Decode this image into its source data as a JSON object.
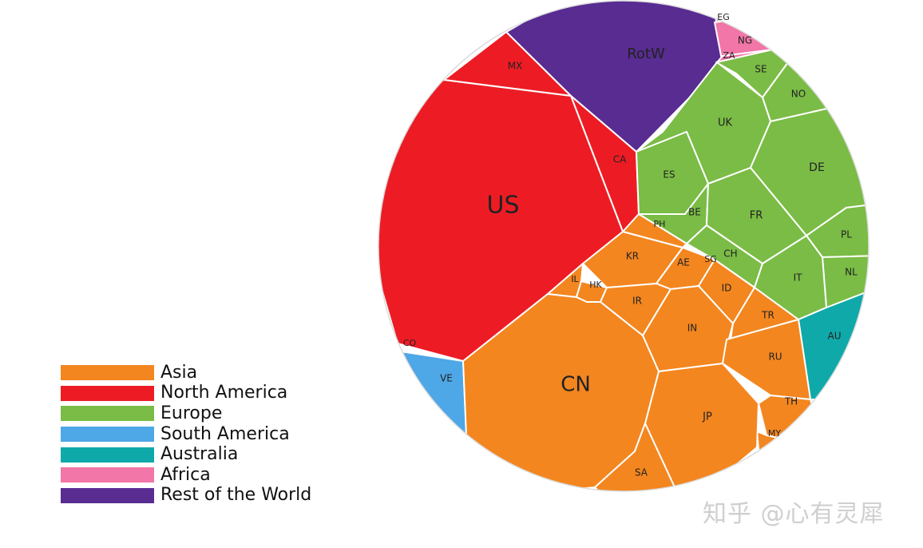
{
  "chart_data": {
    "type": "voronoi-treemap",
    "title": "",
    "groups": [
      {
        "name": "Asia",
        "color": "#f3861f",
        "countries": [
          "CN",
          "JP",
          "IN",
          "KR",
          "RU",
          "ID",
          "IR",
          "TR",
          "AE",
          "SA",
          "TH",
          "HK",
          "IL",
          "SG",
          "PH",
          "MY"
        ]
      },
      {
        "name": "North America",
        "color": "#ed1c24",
        "countries": [
          "US",
          "CA",
          "MX"
        ]
      },
      {
        "name": "Europe",
        "color": "#7abc45",
        "countries": [
          "DE",
          "UK",
          "FR",
          "IT",
          "ES",
          "NL",
          "CH",
          "PL",
          "SE",
          "BE",
          "NO"
        ]
      },
      {
        "name": "South America",
        "color": "#4ea7e6",
        "countries": [
          "VE",
          "CO"
        ]
      },
      {
        "name": "Australia",
        "color": "#0fa9a9",
        "countries": [
          "AU"
        ]
      },
      {
        "name": "Africa",
        "color": "#f276a8",
        "countries": [
          "NG",
          "ZA",
          "EG"
        ]
      },
      {
        "name": "Rest of the World",
        "color": "#582c91",
        "countries": [
          "RotW"
        ]
      }
    ]
  },
  "legend": [
    {
      "label": "Asia",
      "color": "#f3861f"
    },
    {
      "label": "North America",
      "color": "#ed1c24"
    },
    {
      "label": "Europe",
      "color": "#7abc45"
    },
    {
      "label": "South America",
      "color": "#4ea7e6"
    },
    {
      "label": "Australia",
      "color": "#0fa9a9"
    },
    {
      "label": "Africa",
      "color": "#f276a8"
    },
    {
      "label": "Rest of the World",
      "color": "#582c91"
    }
  ],
  "watermark": "知乎 @心有灵犀"
}
